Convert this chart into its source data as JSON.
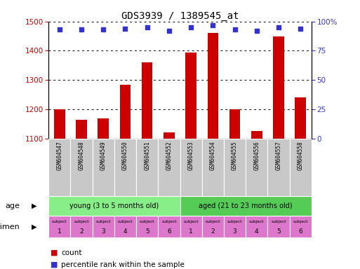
{
  "title": "GDS3939 / 1389545_at",
  "samples": [
    "GSM604547",
    "GSM604548",
    "GSM604549",
    "GSM604550",
    "GSM604551",
    "GSM604552",
    "GSM604553",
    "GSM604554",
    "GSM604555",
    "GSM604556",
    "GSM604557",
    "GSM604558"
  ],
  "counts": [
    1200,
    1165,
    1170,
    1285,
    1360,
    1120,
    1395,
    1460,
    1200,
    1125,
    1450,
    1240
  ],
  "percentile_ranks": [
    93,
    93,
    93,
    94,
    95,
    92,
    95,
    97,
    93,
    92,
    95,
    94
  ],
  "ylim_left": [
    1100,
    1500
  ],
  "ylim_right": [
    0,
    100
  ],
  "yticks_left": [
    1100,
    1200,
    1300,
    1400,
    1500
  ],
  "yticks_right": [
    0,
    25,
    50,
    75,
    100
  ],
  "bar_color": "#cc0000",
  "dot_color": "#3333cc",
  "age_groups": [
    {
      "label": "young (3 to 5 months old)",
      "start": 0,
      "end": 6,
      "color": "#88ee88"
    },
    {
      "label": "aged (21 to 23 months old)",
      "start": 6,
      "end": 12,
      "color": "#55cc55"
    }
  ],
  "specimen_numbers": [
    "1",
    "2",
    "3",
    "4",
    "5",
    "6",
    "1",
    "2",
    "3",
    "4",
    "5",
    "6"
  ],
  "specimen_color": "#dd77cc",
  "xlabel_age": "age",
  "xlabel_specimen": "specimen",
  "legend_count": "count",
  "legend_percentile": "percentile rank within the sample",
  "bar_width": 0.5,
  "tick_label_color_left": "#cc0000",
  "tick_label_color_right": "#3333cc",
  "gray_color": "#c8c8c8",
  "fig_width": 5.13,
  "fig_height": 3.84,
  "dpi": 100
}
